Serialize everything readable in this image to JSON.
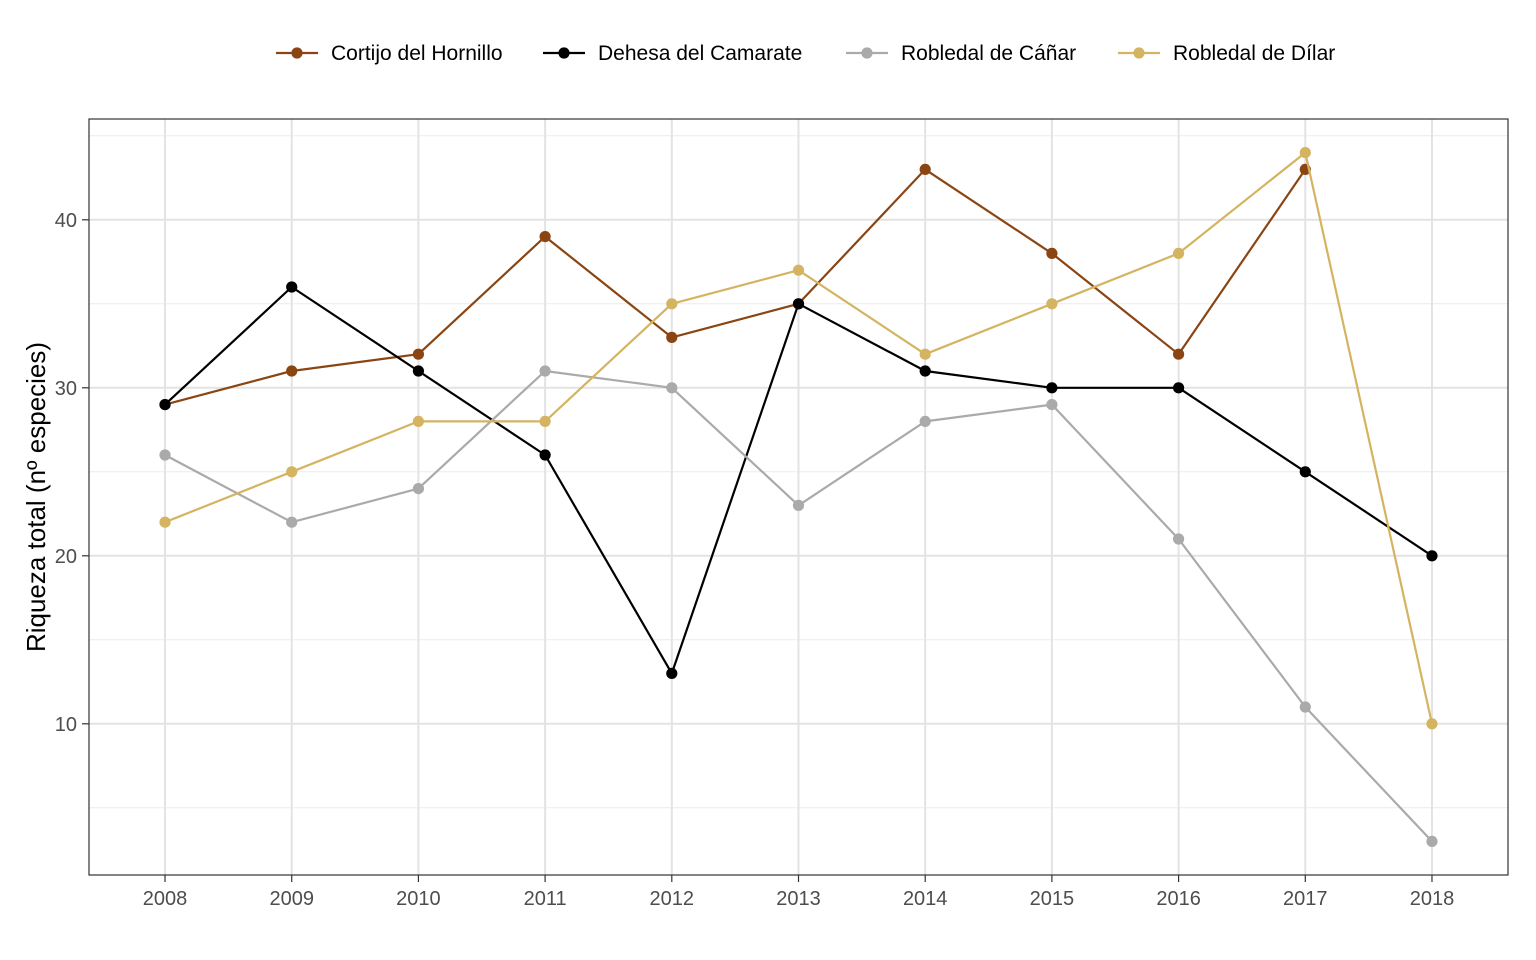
{
  "chart_data": {
    "type": "line",
    "title": "",
    "xlabel": "",
    "ylabel": "Riqueza total (nº especies)",
    "x": [
      2008,
      2009,
      2010,
      2011,
      2012,
      2013,
      2014,
      2015,
      2016,
      2017,
      2018
    ],
    "xlim": [
      2007.4,
      2018.6
    ],
    "ylim": [
      1,
      46
    ],
    "yticks": [
      10,
      20,
      30,
      40
    ],
    "grid": true,
    "legend_position": "top",
    "series": [
      {
        "name": "Cortijo del Hornillo",
        "color": "#8B4513",
        "values": [
          29,
          31,
          32,
          39,
          33,
          35,
          43,
          38,
          32,
          43,
          null
        ]
      },
      {
        "name": "Dehesa del Camarate",
        "color": "#000000",
        "values": [
          29,
          36,
          31,
          26,
          13,
          35,
          31,
          30,
          30,
          25,
          20
        ]
      },
      {
        "name": "Robledal de Cáñar",
        "color": "#AAAAAA",
        "values": [
          26,
          22,
          24,
          31,
          30,
          23,
          28,
          29,
          21,
          11,
          3
        ]
      },
      {
        "name": "Robledal de Dílar",
        "color": "#D4B461",
        "values": [
          22,
          25,
          28,
          28,
          35,
          37,
          32,
          35,
          38,
          44,
          10
        ]
      }
    ]
  }
}
